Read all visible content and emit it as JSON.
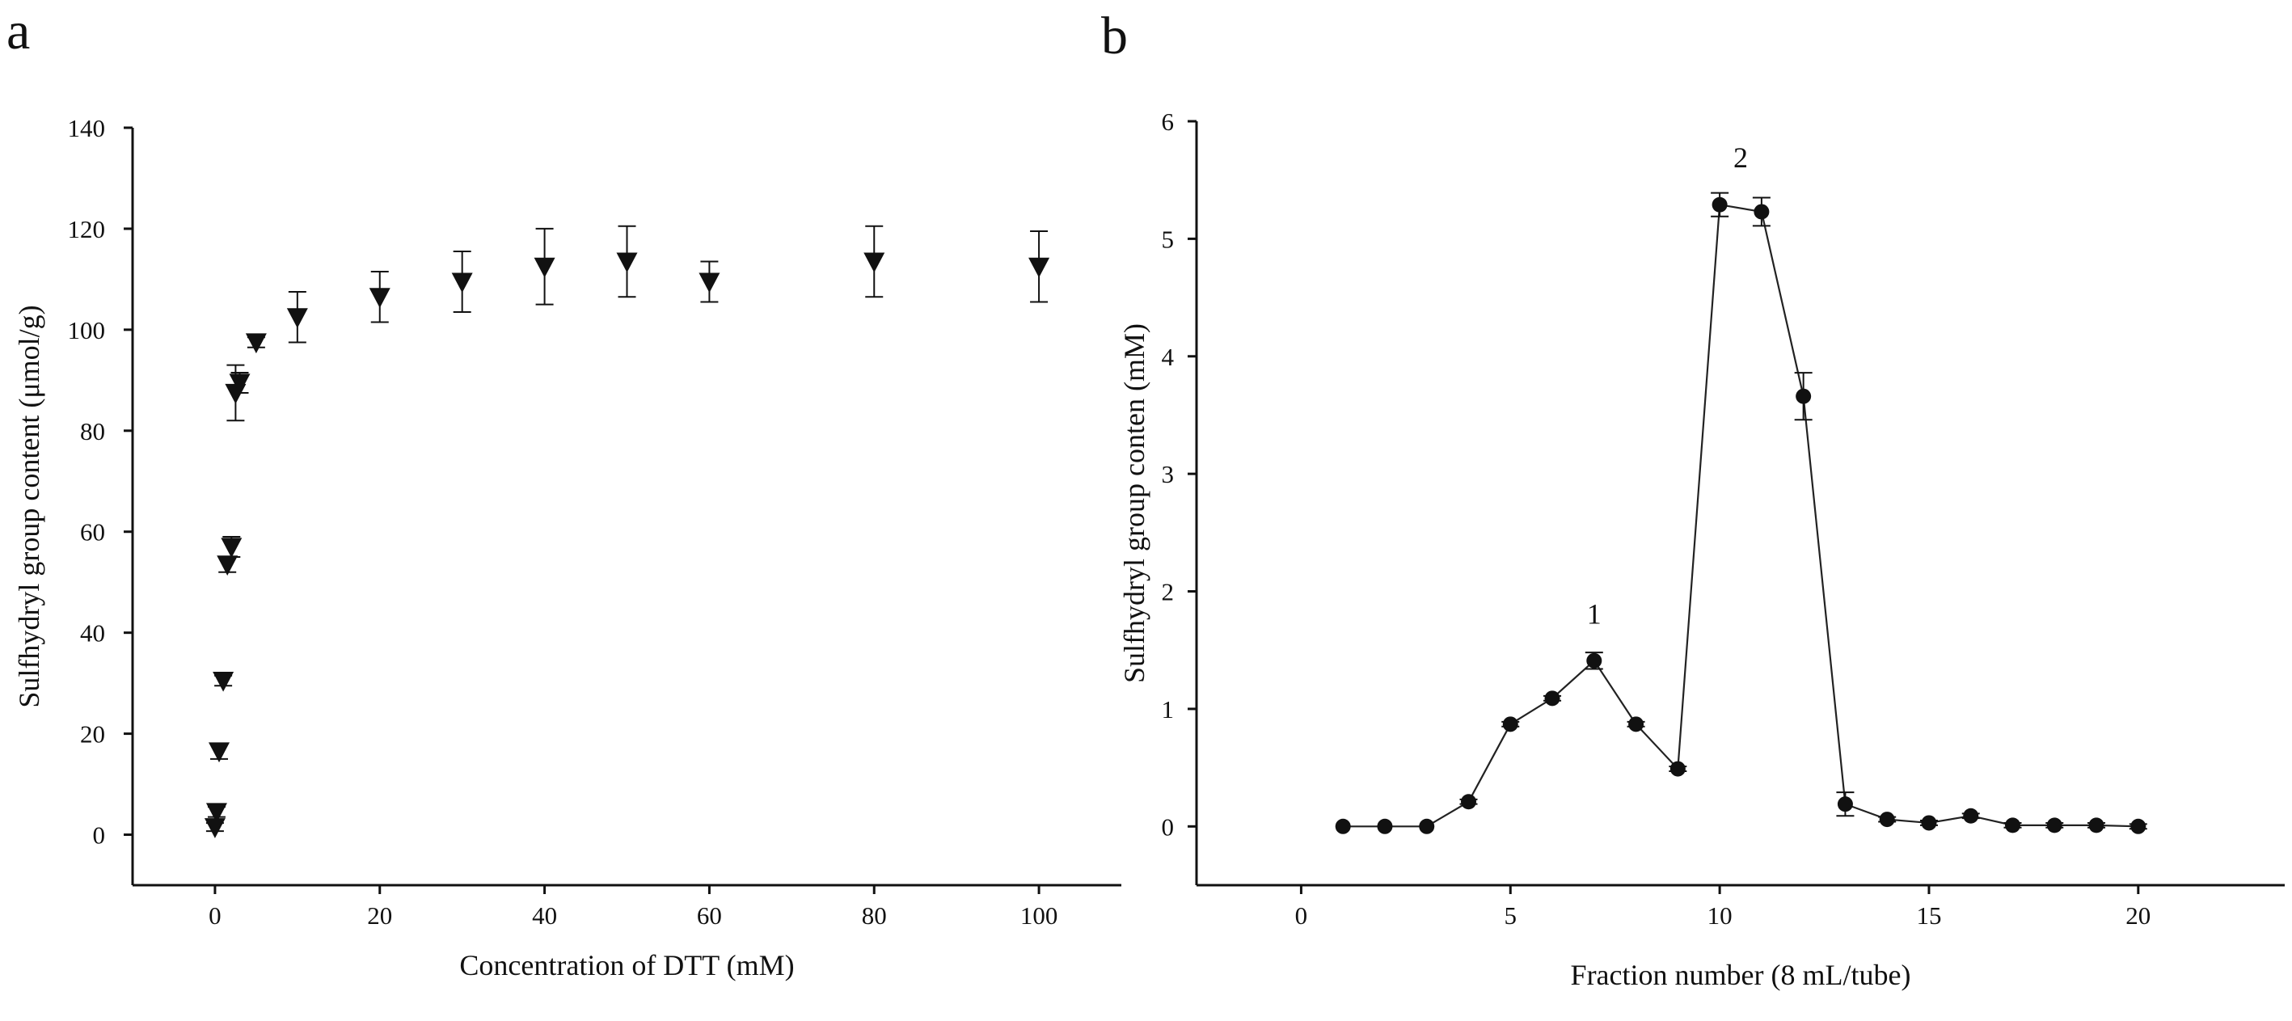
{
  "chart_data": [
    {
      "panel": "a",
      "type": "scatter",
      "xlabel": "Concentration of DTT (mM)",
      "ylabel": "Sulfhydryl group content (μmol/g)",
      "xlim": [
        -10,
        110
      ],
      "ylim": [
        -10,
        140
      ],
      "xticks": [
        0,
        20,
        40,
        60,
        80,
        100
      ],
      "yticks": [
        0,
        20,
        40,
        60,
        80,
        100,
        120,
        140
      ],
      "marker": "down-triangle",
      "x": [
        0,
        0.2,
        0.5,
        1,
        1.5,
        2,
        2.5,
        3,
        5,
        10,
        20,
        30,
        40,
        50,
        60,
        80,
        100
      ],
      "y": [
        1.5,
        4.5,
        16.5,
        30.5,
        53.5,
        57,
        87.5,
        89.5,
        97.5,
        102.5,
        106.5,
        109.5,
        112.5,
        113.5,
        109.5,
        113.5,
        112.5
      ],
      "error": [
        0.8,
        1.0,
        1.5,
        1.0,
        1.5,
        2.0,
        5.5,
        2.0,
        1.0,
        5.0,
        5.0,
        6.0,
        7.5,
        7.0,
        4.0,
        7.0,
        7.0
      ]
    },
    {
      "panel": "b",
      "type": "line",
      "xlabel": "Fraction number (8 mL/tube)",
      "ylabel": "Sulfhydryl group conten (mM)",
      "xlim": [
        -2.5,
        23.5
      ],
      "ylim": [
        -0.5,
        6
      ],
      "xticks": [
        0,
        5,
        10,
        15,
        20
      ],
      "yticks": [
        0,
        1,
        2,
        3,
        4,
        5,
        6
      ],
      "marker": "circle",
      "x": [
        1,
        2,
        3,
        4,
        5,
        6,
        7,
        8,
        9,
        10,
        11,
        12,
        13,
        14,
        15,
        16,
        17,
        18,
        19,
        20
      ],
      "y": [
        0,
        0,
        0,
        0.21,
        0.87,
        1.09,
        1.41,
        0.87,
        0.49,
        5.29,
        5.23,
        3.66,
        0.19,
        0.06,
        0.03,
        0.09,
        0.01,
        0.01,
        0.01,
        0.0
      ],
      "error": [
        0,
        0,
        0,
        0.02,
        0.02,
        0.02,
        0.07,
        0.02,
        0.02,
        0.1,
        0.12,
        0.2,
        0.1,
        0.02,
        0.02,
        0.02,
        0.02,
        0.02,
        0.02,
        0.02
      ],
      "annotations": [
        {
          "text": "1",
          "x": 7,
          "y": 1.41
        },
        {
          "text": "2",
          "x": 10.5,
          "y": 5.29
        }
      ]
    }
  ]
}
